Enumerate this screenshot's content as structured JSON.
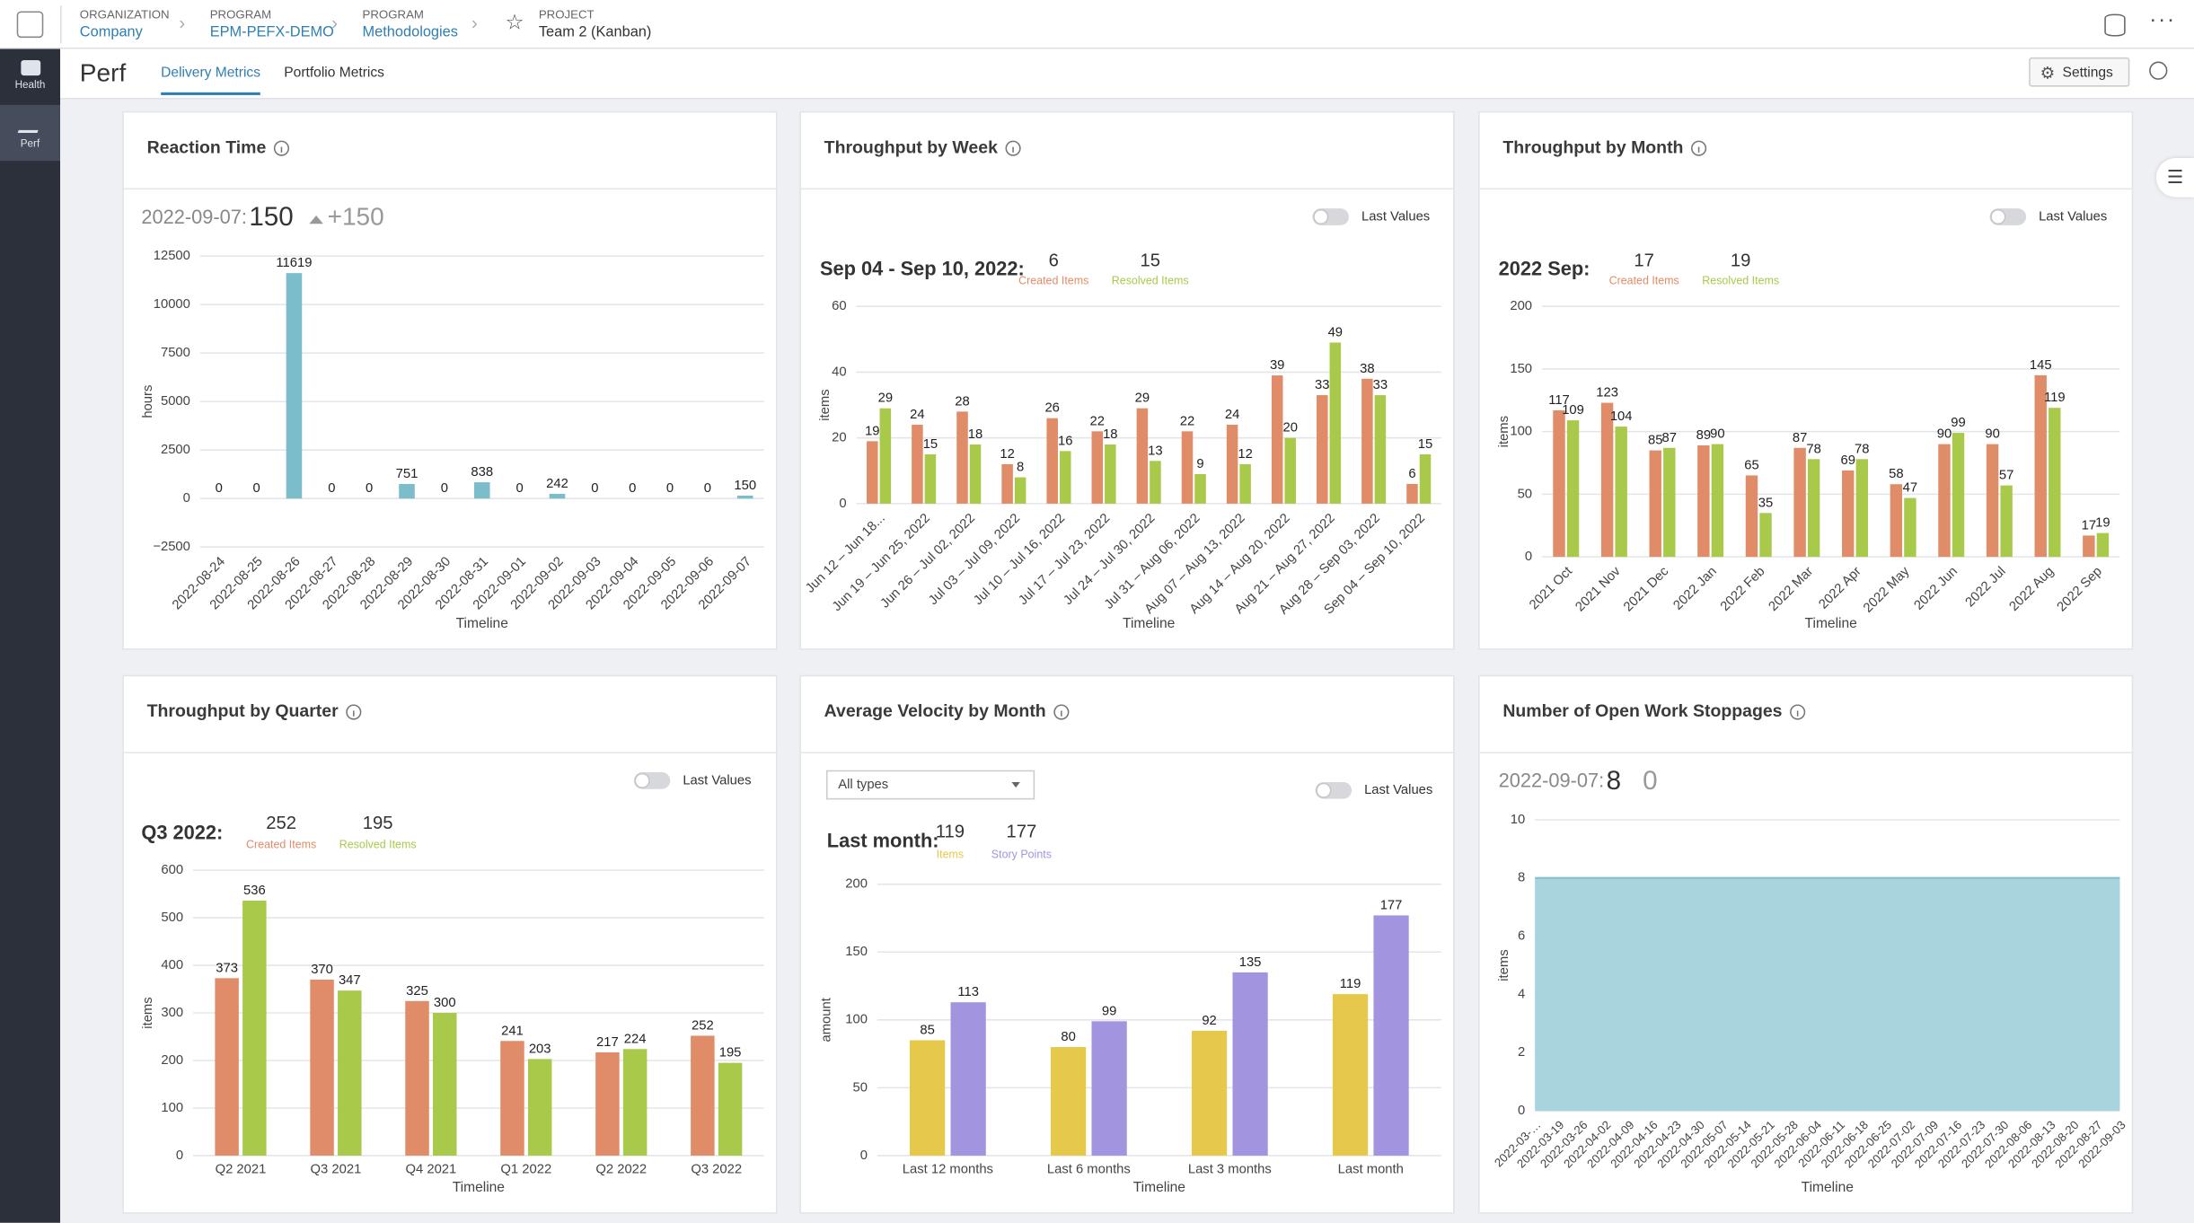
{
  "header": {
    "breadcrumbs": [
      {
        "label": "ORGANIZATION",
        "value": "Company"
      },
      {
        "label": "PROGRAM",
        "value": "EPM-PEFX-DEMO"
      },
      {
        "label": "PROGRAM",
        "value": "Methodologies"
      },
      {
        "label": "PROJECT",
        "value": "Team 2 (Kanban)"
      }
    ]
  },
  "sidebar": {
    "items": [
      "Health",
      "Perf"
    ]
  },
  "page": {
    "title": "Perf",
    "tabs": [
      "Delivery Metrics",
      "Portfolio Metrics"
    ],
    "settings": "Settings"
  },
  "chart_data": [
    {
      "type": "bar",
      "title": "Reaction Time",
      "summary": {
        "label": "2022-09-07:",
        "value": 150,
        "change": {
          "value": 150,
          "label": "+150"
        }
      },
      "categories": [
        "2022-08-24",
        "2022-08-25",
        "2022-08-26",
        "2022-08-27",
        "2022-08-28",
        "2022-08-29",
        "2022-08-30",
        "2022-08-31",
        "2022-09-01",
        "2022-09-02",
        "2022-09-03",
        "2022-09-04",
        "2022-09-05",
        "2022-09-06",
        "2022-09-07"
      ],
      "values": [
        0,
        0,
        11619,
        0,
        0,
        751,
        0,
        838,
        0,
        242,
        0,
        0,
        0,
        0,
        150
      ],
      "color": "#7cbdcc",
      "ylim": [
        -2500,
        12500
      ],
      "yticks": [
        {
          "value": -2500,
          "label": "−2500"
        },
        0,
        2500,
        5000,
        7500,
        10000,
        12500
      ],
      "ylabel": "hours",
      "xlabel": "Timeline",
      "grid": true
    },
    {
      "type": "bar",
      "title": "Throughput by Week",
      "toggle": "Last Values",
      "summary": {
        "label": "Sep 04 - Sep 10, 2022:",
        "values": [
          6,
          15
        ]
      },
      "categories": [
        "Jun 12 – Jun 18...",
        "Jun 19 – Jun 25, 2022",
        "Jun 26 – Jul 02, 2022",
        "Jul 03 – Jul 09, 2022",
        "Jul 10 – Jul 16, 2022",
        "Jul 17 – Jul 23, 2022",
        "Jul 24 – Jul 30, 2022",
        "Jul 31 – Aug 06, 2022",
        "Aug 07 – Aug 13, 2022",
        "Aug 14 – Aug 20, 2022",
        "Aug 21 – Aug 27, 2022",
        "Aug 28 – Sep 03, 2022",
        "Sep 04 – Sep 10, 2022"
      ],
      "series": [
        {
          "name": "Created Items",
          "color": "#e08c68",
          "values": [
            19,
            24,
            28,
            12,
            26,
            22,
            29,
            22,
            24,
            39,
            33,
            38,
            6
          ]
        },
        {
          "name": "Resolved Items",
          "color": "#a9c94b",
          "values": [
            29,
            15,
            18,
            8,
            16,
            18,
            13,
            9,
            12,
            20,
            49,
            33,
            15
          ]
        }
      ],
      "ylim": [
        0,
        60
      ],
      "yticks": [
        0,
        20,
        40,
        60
      ],
      "ylabel": "items",
      "xlabel": "Timeline",
      "grid": true
    },
    {
      "type": "bar",
      "title": "Throughput by Month",
      "toggle": "Last Values",
      "summary": {
        "label": "2022 Sep:",
        "values": [
          17,
          19
        ]
      },
      "categories": [
        "2021 Oct",
        "2021 Nov",
        "2021 Dec",
        "2022 Jan",
        "2022 Feb",
        "2022 Mar",
        "2022 Apr",
        "2022 May",
        "2022 Jun",
        "2022 Jul",
        "2022 Aug",
        "2022 Sep"
      ],
      "series": [
        {
          "name": "Created Items",
          "color": "#e08c68",
          "values": [
            117,
            123,
            85,
            89,
            65,
            87,
            69,
            58,
            90,
            90,
            145,
            17
          ]
        },
        {
          "name": "Resolved Items",
          "color": "#a9c94b",
          "values": [
            109,
            104,
            87,
            90,
            35,
            78,
            78,
            47,
            99,
            57,
            119,
            19
          ]
        }
      ],
      "ylim": [
        0,
        200
      ],
      "yticks": [
        0,
        50,
        100,
        150,
        200
      ],
      "ylabel": "items",
      "xlabel": "Timeline",
      "grid": true
    },
    {
      "type": "bar",
      "title": "Throughput by Quarter",
      "toggle": "Last Values",
      "summary": {
        "label": "Q3 2022:",
        "values": [
          252,
          195
        ]
      },
      "categories": [
        "Q2 2021",
        "Q3 2021",
        "Q4 2021",
        "Q1 2022",
        "Q2 2022",
        "Q3 2022"
      ],
      "series": [
        {
          "name": "Created Items",
          "color": "#e08c68",
          "values": [
            373,
            370,
            325,
            241,
            217,
            252
          ]
        },
        {
          "name": "Resolved Items",
          "color": "#a9c94b",
          "values": [
            536,
            347,
            300,
            203,
            224,
            195
          ]
        }
      ],
      "ylim": [
        0,
        600
      ],
      "yticks": [
        0,
        100,
        200,
        300,
        400,
        500,
        600
      ],
      "ylabel": "items",
      "xlabel": "Timeline",
      "grid": true
    },
    {
      "type": "bar",
      "title": "Average Velocity by Month",
      "toggle": "Last Values",
      "dropdown": "All types",
      "summary": {
        "label": "Last month:",
        "values": [
          119,
          177
        ]
      },
      "categories": [
        "Last 12 months",
        "Last 6 months",
        "Last 3 months",
        "Last month"
      ],
      "series": [
        {
          "name": "Items",
          "color": "#e6c84b",
          "values": [
            85,
            80,
            92,
            119
          ]
        },
        {
          "name": "Story Points",
          "color": "#a394e0",
          "values": [
            113,
            99,
            135,
            177
          ]
        }
      ],
      "ylim": [
        0,
        200
      ],
      "yticks": [
        0,
        50,
        100,
        150,
        200
      ],
      "ylabel": "amount",
      "xlabel": "Timeline",
      "grid": true
    },
    {
      "type": "area",
      "title": "Number of Open Work Stoppages",
      "summary": {
        "label": "2022-09-07:",
        "values": [
          8,
          0
        ]
      },
      "categories": [
        "2022-03-…",
        "2022-03-19",
        "2022-03-26",
        "2022-04-02",
        "2022-04-09",
        "2022-04-16",
        "2022-04-23",
        "2022-04-30",
        "2022-05-07",
        "2022-05-14",
        "2022-05-21",
        "2022-05-28",
        "2022-06-04",
        "2022-06-11",
        "2022-06-18",
        "2022-06-25",
        "2022-07-02",
        "2022-07-09",
        "2022-07-16",
        "2022-07-23",
        "2022-07-30",
        "2022-08-06",
        "2022-08-13",
        "2022-08-20",
        "2022-08-27",
        "2022-09-03"
      ],
      "values": [
        8,
        8,
        8,
        8,
        8,
        8,
        8,
        8,
        8,
        8,
        8,
        8,
        8,
        8,
        8,
        8,
        8,
        8,
        8,
        8,
        8,
        8,
        8,
        8,
        8,
        8
      ],
      "color": "#a7d4dd",
      "ylim": [
        0,
        10
      ],
      "yticks": [
        0,
        2,
        4,
        6,
        8,
        10
      ],
      "ylabel": "items",
      "xlabel": "Timeline",
      "grid": true
    }
  ]
}
